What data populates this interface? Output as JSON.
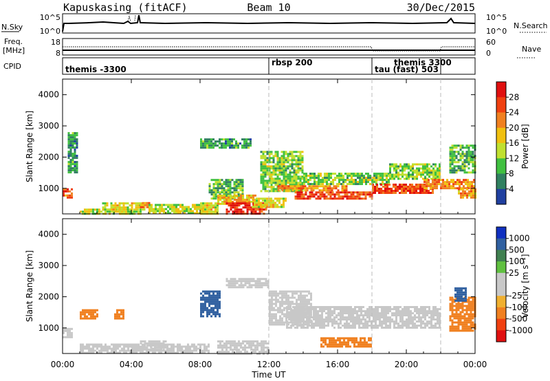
{
  "header": {
    "station": "Kapuskasing (fitACF)",
    "beam": "Beam 10",
    "date": "30/Dec/2015"
  },
  "noise_panel": {
    "left_label": "N.Sky",
    "right_label": "N.Search",
    "left_ticks": [
      "10^5",
      "10^0"
    ],
    "right_ticks": [
      "10^5",
      "10^0"
    ]
  },
  "freq_panel": {
    "left_label_line1": "Freq.",
    "left_label_line2": "[MHz]",
    "right_label": "Nave",
    "left_ticks": [
      "18",
      "8"
    ],
    "right_ticks": [
      "60",
      "0"
    ]
  },
  "cpid_panel": {
    "label": "CPID",
    "segments": [
      {
        "label": "themis -3300",
        "start_h": 0,
        "end_h": 12
      },
      {
        "label": "rbsp 200",
        "start_h": 12,
        "end_h": 18
      },
      {
        "label": "themis 3300",
        "start_h": 18,
        "end_h": 22
      },
      {
        "label": "tau (fast) 503",
        "start_h": 18,
        "end_h": 22
      }
    ]
  },
  "xaxis": {
    "title": "Time UT",
    "ticks": [
      "00:00",
      "04:00",
      "08:00",
      "12:00",
      "16:00",
      "20:00",
      "00:00"
    ]
  },
  "yaxis": {
    "title": "Slant Range [km]",
    "ticks": [
      "1000",
      "2000",
      "3000",
      "4000"
    ]
  },
  "power_colorbar": {
    "title": "Power [dB]",
    "labels": [
      "28",
      "24",
      "20",
      "16",
      "12",
      "8",
      "4"
    ],
    "colors": [
      "#e01010",
      "#f04010",
      "#f08020",
      "#f0c010",
      "#c0e030",
      "#40c040",
      "#308060",
      "#2040a0",
      "#1010e0"
    ]
  },
  "velocity_colorbar": {
    "title": "Velocity [m s⁻¹]",
    "labels": [
      "1000",
      "500",
      "100",
      "25",
      "-25",
      "-100",
      "-500",
      "-1000"
    ],
    "colors": [
      "#1030c0",
      "#3060a0",
      "#408050",
      "#60c040",
      "#c8c8c8",
      "#c8c8c8",
      "#f0b030",
      "#f08020",
      "#f04010",
      "#e01010"
    ]
  },
  "chart_data": {
    "type": "heatmap",
    "x_unit": "hours UT",
    "xlim": [
      0,
      24
    ],
    "ylim": [
      180,
      4500
    ],
    "y_unit": "km",
    "panels": [
      {
        "name": "Power",
        "regions": [
          {
            "t0": 0.0,
            "t1": 0.5,
            "r0": 700,
            "r1": 1000,
            "power_db": 24
          },
          {
            "t0": 0.3,
            "t1": 0.9,
            "r0": 1500,
            "r1": 2800,
            "power_db": 8
          },
          {
            "t0": 1.0,
            "t1": 4.5,
            "r0": 200,
            "r1": 350,
            "power_db": 14
          },
          {
            "t0": 2.3,
            "t1": 4.8,
            "r0": 300,
            "r1": 550,
            "power_db": 16
          },
          {
            "t0": 4.5,
            "t1": 5.2,
            "r0": 380,
            "r1": 560,
            "power_db": 24
          },
          {
            "t0": 5.0,
            "t1": 8.2,
            "r0": 200,
            "r1": 500,
            "power_db": 14
          },
          {
            "t0": 8.0,
            "t1": 9.0,
            "r0": 200,
            "r1": 550,
            "power_db": 16
          },
          {
            "t0": 8.5,
            "t1": 10.5,
            "r0": 700,
            "r1": 1300,
            "power_db": 10
          },
          {
            "t0": 9.0,
            "t1": 11.2,
            "r0": 500,
            "r1": 800,
            "power_db": 18
          },
          {
            "t0": 9.5,
            "t1": 11.8,
            "r0": 180,
            "r1": 550,
            "power_db": 28
          },
          {
            "t0": 11.0,
            "t1": 13.0,
            "r0": 400,
            "r1": 700,
            "power_db": 16
          },
          {
            "t0": 8.0,
            "t1": 11.0,
            "r0": 2300,
            "r1": 2600,
            "power_db": 8
          },
          {
            "t0": 11.5,
            "t1": 14.0,
            "r0": 900,
            "r1": 2200,
            "power_db": 12
          },
          {
            "t0": 12.5,
            "t1": 16.5,
            "r0": 950,
            "r1": 1100,
            "power_db": 22
          },
          {
            "t0": 13.5,
            "t1": 18.0,
            "r0": 700,
            "r1": 900,
            "power_db": 26
          },
          {
            "t0": 14.0,
            "t1": 19.0,
            "r0": 1150,
            "r1": 1500,
            "power_db": 12
          },
          {
            "t0": 18.0,
            "t1": 21.5,
            "r0": 850,
            "r1": 1150,
            "power_db": 26
          },
          {
            "t0": 19.0,
            "t1": 22.0,
            "r0": 1300,
            "r1": 1800,
            "power_db": 12
          },
          {
            "t0": 21.0,
            "t1": 24.0,
            "r0": 1000,
            "r1": 1300,
            "power_db": 22
          },
          {
            "t0": 22.5,
            "t1": 24.0,
            "r0": 1500,
            "r1": 2400,
            "power_db": 10
          },
          {
            "t0": 23.0,
            "t1": 24.0,
            "r0": 700,
            "r1": 1000,
            "power_db": 20
          }
        ]
      },
      {
        "name": "Velocity",
        "regions": [
          {
            "t0": 0.0,
            "t1": 0.5,
            "r0": 700,
            "r1": 1000,
            "velocity": 0
          },
          {
            "t0": 1.0,
            "t1": 2.0,
            "r0": 1300,
            "r1": 1600,
            "velocity": -150
          },
          {
            "t0": 1.0,
            "t1": 8.5,
            "r0": 200,
            "r1": 500,
            "velocity": 0
          },
          {
            "t0": 3.0,
            "t1": 3.6,
            "r0": 1300,
            "r1": 1600,
            "velocity": -150
          },
          {
            "t0": 4.5,
            "t1": 6.0,
            "r0": 300,
            "r1": 600,
            "velocity": 0
          },
          {
            "t0": 8.0,
            "t1": 9.2,
            "r0": 1400,
            "r1": 2200,
            "velocity": 120
          },
          {
            "t0": 9.0,
            "t1": 12.0,
            "r0": 200,
            "r1": 600,
            "velocity": 0
          },
          {
            "t0": 9.5,
            "t1": 12.0,
            "r0": 2300,
            "r1": 2600,
            "velocity": 0
          },
          {
            "t0": 12.0,
            "t1": 14.5,
            "r0": 1100,
            "r1": 2200,
            "velocity": 0
          },
          {
            "t0": 13.0,
            "t1": 22.0,
            "r0": 1000,
            "r1": 1700,
            "velocity": 0
          },
          {
            "t0": 15.0,
            "t1": 18.0,
            "r0": 400,
            "r1": 700,
            "velocity": -120
          },
          {
            "t0": 22.5,
            "t1": 24.0,
            "r0": 900,
            "r1": 2000,
            "velocity": -300
          },
          {
            "t0": 22.8,
            "t1": 23.5,
            "r0": 1900,
            "r1": 2300,
            "velocity": 200
          }
        ]
      }
    ]
  }
}
